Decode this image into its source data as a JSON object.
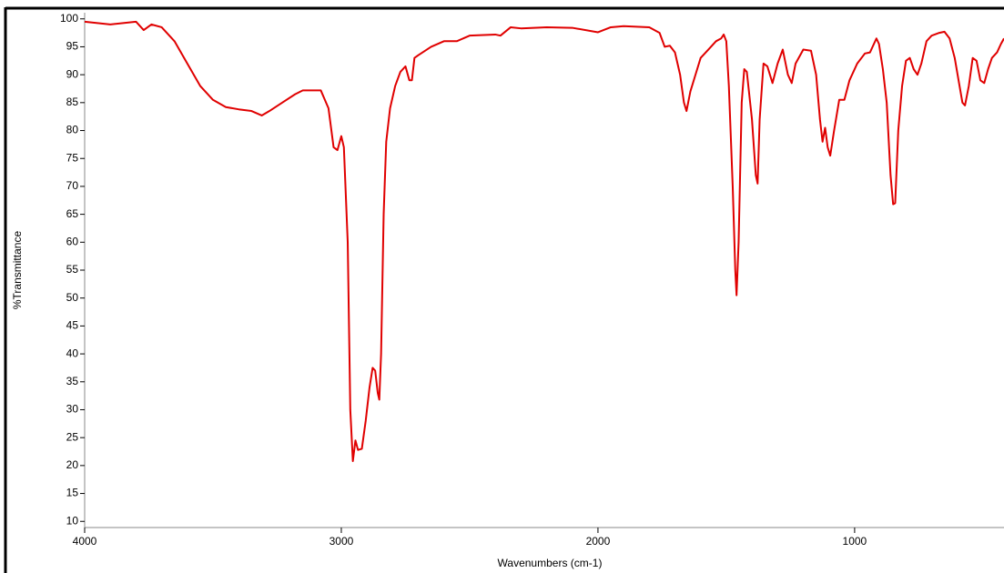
{
  "chart_data": {
    "type": "line",
    "xlabel": "Wavenumbers (cm-1)",
    "ylabel": "%Transmittance",
    "color": "#e00000",
    "xlim": [
      4000,
      418
    ],
    "ylim": [
      8.9,
      101.1
    ],
    "xticks": [
      4000,
      3000,
      2000,
      1000
    ],
    "yticks": [
      10,
      15,
      20,
      25,
      30,
      35,
      40,
      45,
      50,
      55,
      60,
      65,
      70,
      75,
      80,
      85,
      90,
      95,
      100
    ],
    "x": [
      4000,
      3900,
      3800,
      3770,
      3740,
      3700,
      3650,
      3600,
      3550,
      3500,
      3450,
      3400,
      3350,
      3310,
      3280,
      3230,
      3180,
      3150,
      3080,
      3050,
      3030,
      3015,
      3000,
      2990,
      2975,
      2965,
      2955,
      2945,
      2935,
      2920,
      2905,
      2890,
      2878,
      2868,
      2858,
      2852,
      2845,
      2835,
      2825,
      2810,
      2790,
      2770,
      2750,
      2735,
      2725,
      2715,
      2700,
      2650,
      2600,
      2550,
      2500,
      2400,
      2380,
      2340,
      2300,
      2200,
      2100,
      2000,
      1950,
      1900,
      1800,
      1760,
      1740,
      1720,
      1700,
      1680,
      1665,
      1655,
      1640,
      1620,
      1600,
      1570,
      1540,
      1520,
      1510,
      1500,
      1490,
      1475,
      1465,
      1460,
      1452,
      1440,
      1430,
      1420,
      1400,
      1385,
      1378,
      1370,
      1355,
      1340,
      1320,
      1300,
      1280,
      1260,
      1245,
      1230,
      1200,
      1170,
      1150,
      1135,
      1125,
      1115,
      1105,
      1095,
      1080,
      1060,
      1040,
      1020,
      990,
      960,
      940,
      915,
      905,
      890,
      875,
      860,
      850,
      842,
      830,
      815,
      800,
      785,
      770,
      755,
      740,
      720,
      700,
      670,
      650,
      630,
      610,
      595,
      580,
      570,
      555,
      540,
      525,
      510,
      495,
      480,
      465,
      445,
      430,
      418
    ],
    "values": [
      99.5,
      99,
      99.5,
      98,
      99,
      98.5,
      96,
      92,
      88,
      85.5,
      84.2,
      83.8,
      83.5,
      82.7,
      83.5,
      85,
      86.5,
      87.2,
      87.2,
      84,
      77,
      76.5,
      79,
      77,
      60,
      30,
      20.8,
      24.5,
      22.8,
      23,
      28,
      34,
      37.5,
      37,
      33,
      31.8,
      40,
      65,
      78,
      84,
      88,
      90.5,
      91.5,
      89,
      89,
      93,
      93.5,
      95,
      96,
      96,
      97,
      97.2,
      97,
      98.5,
      98.3,
      98.5,
      98.4,
      97.6,
      98.5,
      98.7,
      98.5,
      97.5,
      95,
      95.2,
      94,
      90,
      85,
      83.5,
      87,
      90,
      93,
      94.5,
      96,
      96.5,
      97.2,
      96,
      88,
      70,
      55,
      50.5,
      60,
      85,
      91,
      90.5,
      82,
      72,
      70.5,
      82,
      92,
      91.5,
      88.5,
      92,
      94.5,
      90,
      88.5,
      92,
      94.5,
      94.3,
      90,
      82,
      78,
      80.5,
      77,
      75.5,
      80,
      85.5,
      85.5,
      89,
      92,
      93.8,
      94,
      96.5,
      95.5,
      91,
      85,
      72,
      66.8,
      67,
      80,
      88,
      92.5,
      93,
      91,
      90,
      92,
      96,
      97,
      97.5,
      97.7,
      96.5,
      93,
      89,
      85,
      84.5,
      88,
      93,
      92.5,
      89,
      88.5,
      91,
      93,
      94,
      95.5,
      96.5
    ]
  }
}
